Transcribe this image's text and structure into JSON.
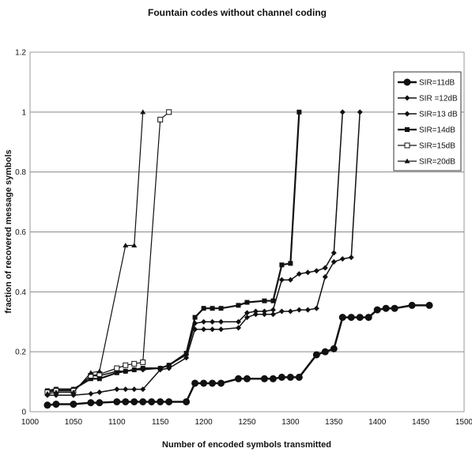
{
  "chart_data": {
    "type": "line",
    "title": "Fountain codes without channel coding",
    "xlabel": "Number of encoded symbols transmitted",
    "ylabel": "fraction of recovered message symbols",
    "xlim": [
      1000,
      1500
    ],
    "ylim": [
      0,
      1.2
    ],
    "xticks": [
      1000,
      1050,
      1100,
      1150,
      1200,
      1250,
      1300,
      1350,
      1400,
      1450,
      1500
    ],
    "yticks": [
      0,
      0.2,
      0.4,
      0.6,
      0.8,
      1,
      1.2
    ],
    "grid": "horizontal",
    "legend_position": "top-right",
    "series": [
      {
        "name": "SIR=11dB",
        "marker": "circle",
        "x": [
          1020,
          1030,
          1050,
          1070,
          1080,
          1100,
          1110,
          1120,
          1130,
          1140,
          1150,
          1160,
          1180,
          1190,
          1200,
          1210,
          1220,
          1240,
          1250,
          1270,
          1280,
          1290,
          1300,
          1310,
          1330,
          1340,
          1350,
          1360,
          1370,
          1380,
          1390,
          1400,
          1410,
          1420,
          1440,
          1460
        ],
        "y": [
          0.022,
          0.025,
          0.025,
          0.03,
          0.03,
          0.033,
          0.033,
          0.033,
          0.033,
          0.033,
          0.033,
          0.033,
          0.033,
          0.095,
          0.095,
          0.095,
          0.095,
          0.11,
          0.11,
          0.11,
          0.11,
          0.115,
          0.115,
          0.115,
          0.19,
          0.2,
          0.21,
          0.315,
          0.315,
          0.315,
          0.315,
          0.34,
          0.345,
          0.345,
          0.355,
          0.355
        ]
      },
      {
        "name": "SIR =12dB",
        "marker": "diamond",
        "x": [
          1020,
          1030,
          1050,
          1070,
          1080,
          1100,
          1110,
          1120,
          1130,
          1150,
          1160,
          1180,
          1190,
          1200,
          1210,
          1220,
          1240,
          1250,
          1260,
          1270,
          1280,
          1290,
          1300,
          1310,
          1320,
          1330,
          1340,
          1350,
          1360,
          1370,
          1380
        ],
        "y": [
          0.055,
          0.055,
          0.055,
          0.06,
          0.065,
          0.075,
          0.075,
          0.075,
          0.075,
          0.14,
          0.145,
          0.18,
          0.275,
          0.275,
          0.275,
          0.275,
          0.28,
          0.315,
          0.325,
          0.325,
          0.325,
          0.335,
          0.335,
          0.34,
          0.34,
          0.345,
          0.45,
          0.5,
          0.51,
          0.515,
          1
        ]
      },
      {
        "name": "SIR=13 dB",
        "marker": "diamond",
        "x": [
          1020,
          1030,
          1050,
          1070,
          1080,
          1100,
          1110,
          1120,
          1130,
          1150,
          1160,
          1180,
          1190,
          1200,
          1210,
          1220,
          1240,
          1250,
          1260,
          1270,
          1280,
          1290,
          1300,
          1310,
          1320,
          1330,
          1340,
          1350,
          1360
        ],
        "y": [
          0.065,
          0.07,
          0.07,
          0.12,
          0.12,
          0.135,
          0.135,
          0.14,
          0.14,
          0.145,
          0.155,
          0.19,
          0.295,
          0.3,
          0.3,
          0.3,
          0.3,
          0.33,
          0.335,
          0.335,
          0.34,
          0.44,
          0.44,
          0.46,
          0.465,
          0.47,
          0.48,
          0.53,
          1
        ]
      },
      {
        "name": "SIR=14dB",
        "marker": "square",
        "x": [
          1020,
          1030,
          1050,
          1070,
          1080,
          1100,
          1110,
          1120,
          1130,
          1150,
          1160,
          1180,
          1190,
          1200,
          1210,
          1220,
          1240,
          1250,
          1270,
          1280,
          1290,
          1300,
          1310
        ],
        "y": [
          0.07,
          0.075,
          0.075,
          0.11,
          0.11,
          0.13,
          0.135,
          0.14,
          0.145,
          0.145,
          0.155,
          0.195,
          0.315,
          0.345,
          0.345,
          0.345,
          0.355,
          0.365,
          0.37,
          0.37,
          0.49,
          0.495,
          1
        ]
      },
      {
        "name": "SIR=15dB",
        "marker": "square-open",
        "x": [
          1020,
          1030,
          1050,
          1070,
          1080,
          1100,
          1110,
          1120,
          1130,
          1150,
          1160
        ],
        "y": [
          0.065,
          0.07,
          0.07,
          0.12,
          0.125,
          0.145,
          0.155,
          0.16,
          0.165,
          0.975,
          1
        ]
      },
      {
        "name": "SIR=20dB",
        "marker": "triangle",
        "x": [
          1020,
          1030,
          1050,
          1070,
          1080,
          1110,
          1120,
          1130
        ],
        "y": [
          0.06,
          0.065,
          0.065,
          0.13,
          0.135,
          0.555,
          0.555,
          1
        ]
      }
    ]
  }
}
